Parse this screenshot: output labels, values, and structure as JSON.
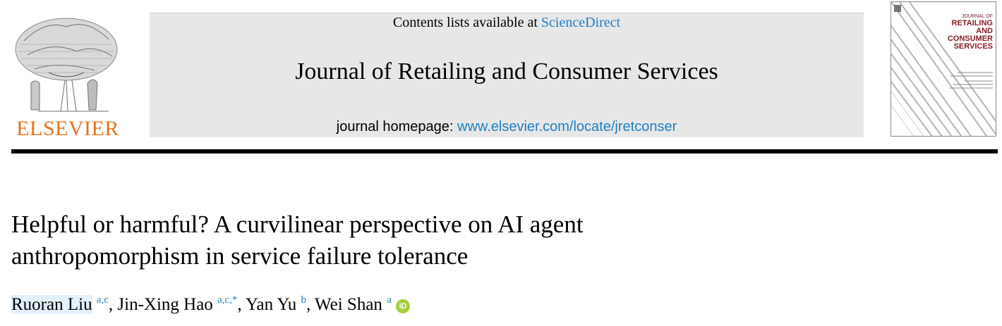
{
  "publisher": {
    "name": "ELSEVIER"
  },
  "masthead": {
    "contents_prefix": "Contents lists available at",
    "contents_link": "ScienceDirect",
    "journal_title": "Journal of Retailing and Consumer Services",
    "homepage_label": "journal homepage:",
    "homepage_url": "www.elsevier.com/locate/jretconser"
  },
  "cover": {
    "title_small": "JOURNAL OF",
    "title_line1": "RETAILING",
    "title_line2": "AND",
    "title_line3": "CONSUMER",
    "title_line4": "SERVICES"
  },
  "article": {
    "title_line1": "Helpful or harmful? A curvilinear perspective on AI agent",
    "title_line2": "anthropomorphism in service failure tolerance",
    "authors": [
      {
        "name": "Ruoran Liu",
        "affil": "a,c"
      },
      {
        "name": "Jin-Xing Hao",
        "affil": "a,c,*"
      },
      {
        "name": "Yan Yu",
        "affil": "b"
      },
      {
        "name": "Wei Shan",
        "affil": "a"
      }
    ],
    "orcid_label": "iD"
  },
  "colors": {
    "link": "#1f80c2",
    "elsevier_orange": "#e9711c",
    "cover_title": "#8b1d28",
    "masthead_bg": "#e7e7e7",
    "orcid": "#a6ce39"
  }
}
